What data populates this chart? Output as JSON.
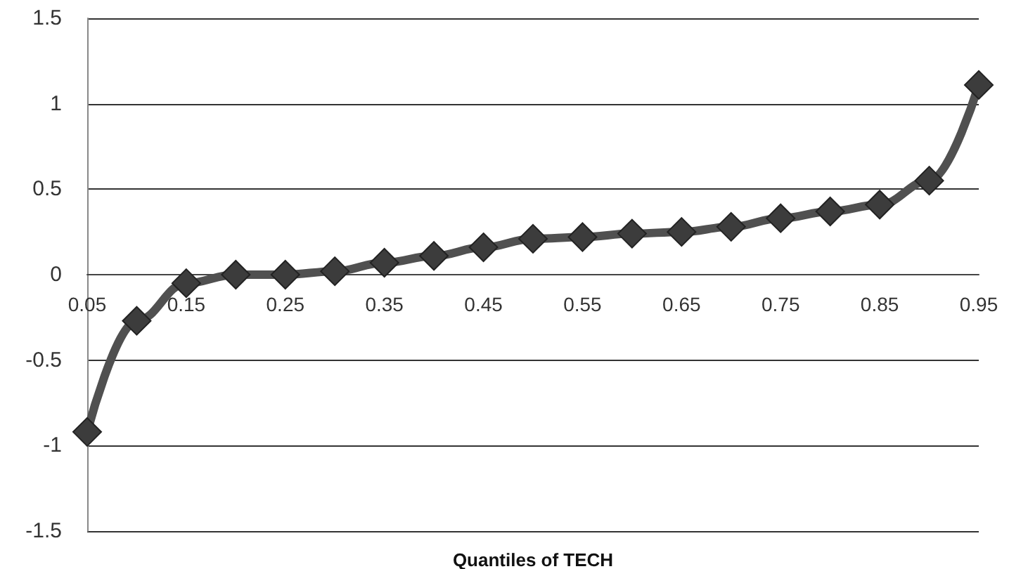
{
  "chart_data": {
    "type": "line",
    "xlabel": "Quantiles of TECH",
    "x": [
      0.05,
      0.1,
      0.15,
      0.2,
      0.25,
      0.3,
      0.35,
      0.4,
      0.45,
      0.5,
      0.55,
      0.6,
      0.65,
      0.7,
      0.75,
      0.8,
      0.85,
      0.9,
      0.95
    ],
    "series": [
      {
        "color": "#505050",
        "values": [
          -0.92,
          -0.27,
          -0.05,
          0.0,
          0.0,
          0.02,
          0.07,
          0.11,
          0.16,
          0.21,
          0.22,
          0.24,
          0.25,
          0.28,
          0.33,
          0.37,
          0.41,
          0.55,
          1.11
        ]
      }
    ],
    "xlim": [
      0.05,
      0.95
    ],
    "xticks": [
      0.05,
      0.15,
      0.25,
      0.35,
      0.45,
      0.55,
      0.65,
      0.75,
      0.85,
      0.95
    ],
    "ylim": [
      -1.5,
      1.5
    ],
    "yticks": [
      -1.5,
      -1,
      -0.5,
      0,
      0.5,
      1,
      1.5
    ],
    "grid": "y",
    "marker": "diamond",
    "line_style": "solid"
  }
}
